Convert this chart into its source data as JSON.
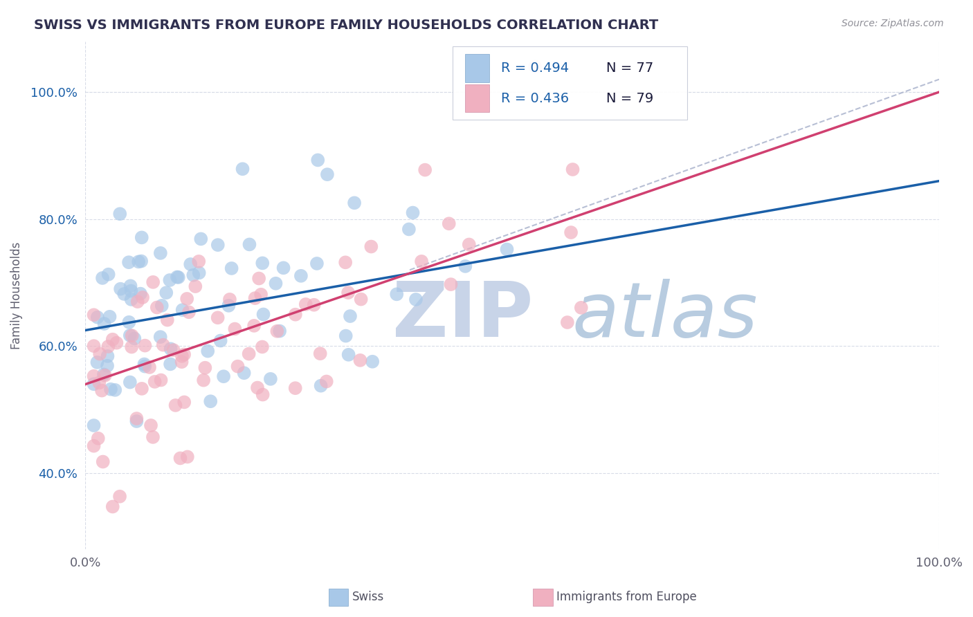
{
  "title": "SWISS VS IMMIGRANTS FROM EUROPE FAMILY HOUSEHOLDS CORRELATION CHART",
  "source": "Source: ZipAtlas.com",
  "ylabel": "Family Households",
  "x_min": 0.0,
  "x_max": 1.0,
  "y_min": 0.28,
  "y_max": 1.08,
  "y_ticks": [
    0.4,
    0.6,
    0.8,
    1.0
  ],
  "y_tick_labels": [
    "40.0%",
    "60.0%",
    "80.0%",
    "100.0%"
  ],
  "legend_labels": [
    "Swiss",
    "Immigrants from Europe"
  ],
  "swiss_R": 0.494,
  "swiss_N": 77,
  "immigrants_R": 0.436,
  "immigrants_N": 79,
  "swiss_color": "#A8C8E8",
  "immigrants_color": "#F0B0C0",
  "swiss_line_color": "#1A5FA8",
  "immigrants_line_color": "#D04070",
  "dashed_line_color": "#B0B8D0",
  "background_color": "#FFFFFF",
  "grid_color": "#D8DCE8",
  "title_color": "#303050",
  "watermark_zip_color": "#C8D4E8",
  "watermark_atlas_color": "#B8CCE0",
  "swiss_line_x0": 0.0,
  "swiss_line_y0": 0.625,
  "swiss_line_x1": 1.0,
  "swiss_line_y1": 0.86,
  "imm_line_x0": 0.0,
  "imm_line_y0": 0.54,
  "imm_line_x1": 1.0,
  "imm_line_y1": 1.0,
  "dash_line_x0": 0.38,
  "dash_line_y0": 0.72,
  "dash_line_x1": 1.0,
  "dash_line_y1": 1.02
}
